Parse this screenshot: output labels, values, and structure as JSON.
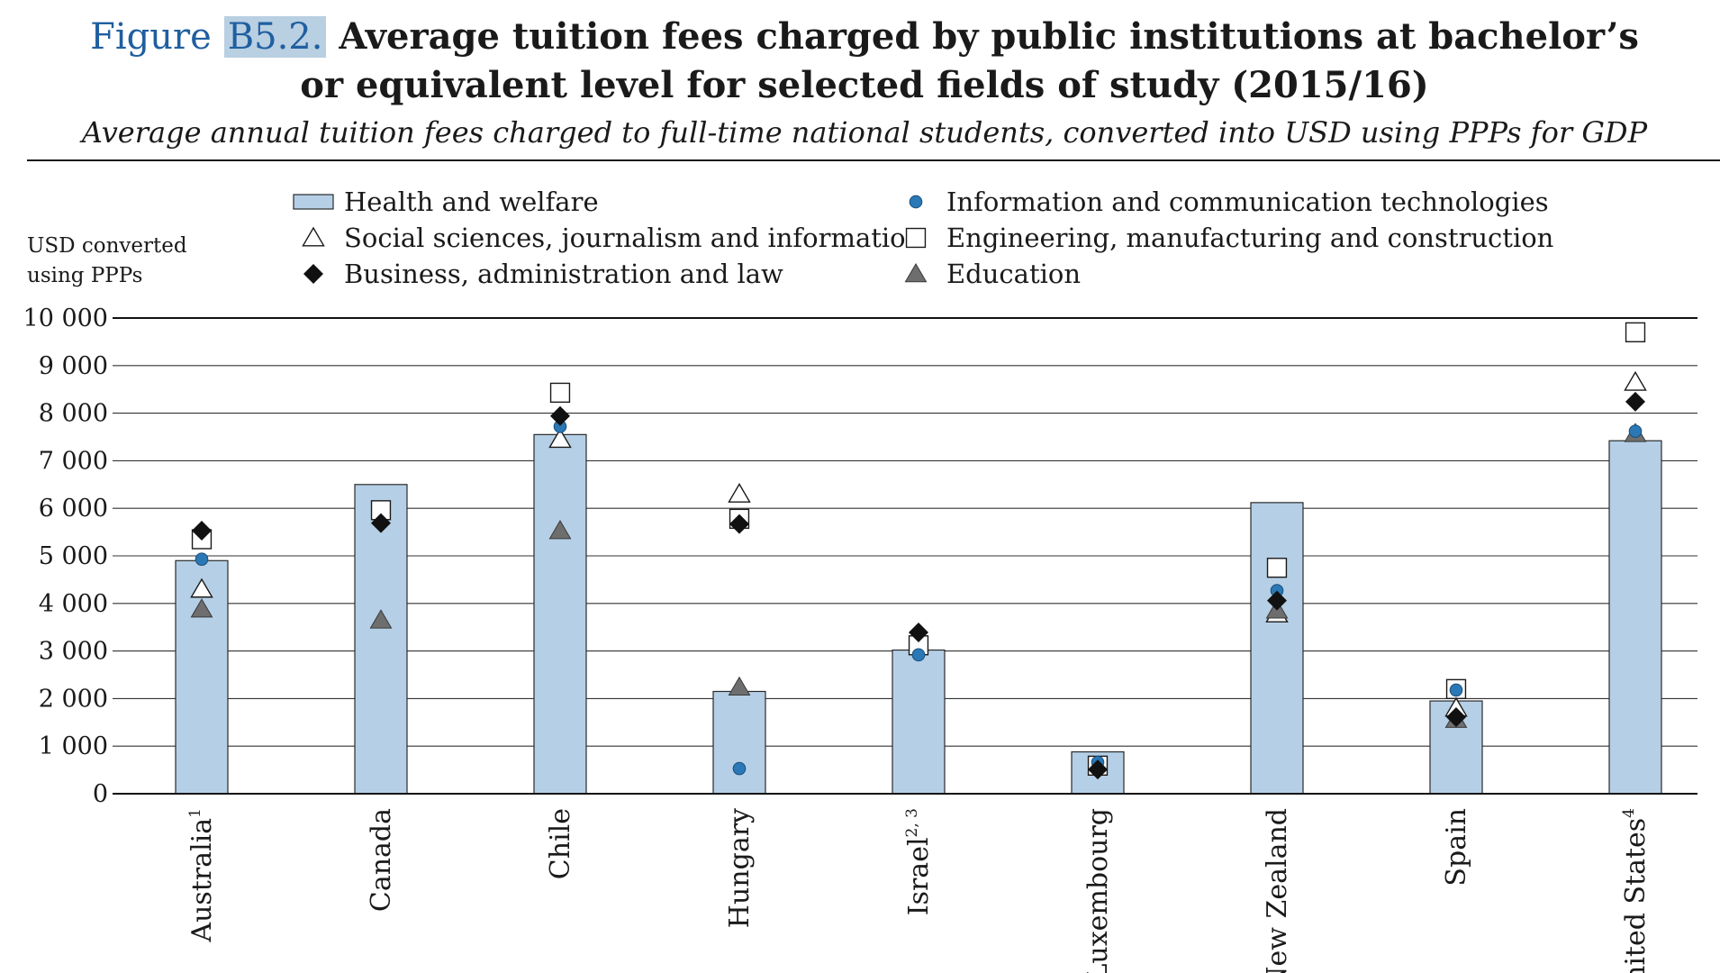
{
  "header": {
    "figure_label": "Figure",
    "figure_number": "B5.2.",
    "title_line1": "Average tuition fees charged by public institutions at bachelor’s",
    "title_line2": "or equivalent level for selected fields of study (2015/16)",
    "subtitle": "Average annual tuition fees charged to full-time national students, converted into USD using PPPs for GDP"
  },
  "colors": {
    "bar_fill": "#b5cfe6",
    "bar_stroke": "#2a2a2a",
    "ict_dot": "#2a78b5",
    "education_triangle": "#6e6e6e",
    "business_diamond": "#111111",
    "grid": "#333333"
  },
  "chart_data": {
    "type": "bar",
    "ylabel_line1": "USD converted",
    "ylabel_line2": "using PPPs",
    "ylim": [
      0,
      10000
    ],
    "yticks": [
      0,
      1000,
      2000,
      3000,
      4000,
      5000,
      6000,
      7000,
      8000,
      9000,
      10000
    ],
    "ytick_labels": [
      "0",
      "1 000",
      "2 000",
      "3 000",
      "4 000",
      "5 000",
      "6 000",
      "7 000",
      "8 000",
      "9 000",
      "10 000"
    ],
    "grid": true,
    "categories": [
      {
        "name": "Australia",
        "note": "1"
      },
      {
        "name": "Canada",
        "note": ""
      },
      {
        "name": "Chile",
        "note": ""
      },
      {
        "name": "Hungary",
        "note": ""
      },
      {
        "name": "Israel",
        "note": "2, 3"
      },
      {
        "name": "Luxembourg",
        "note": ""
      },
      {
        "name": "New Zealand",
        "note": ""
      },
      {
        "name": "Spain",
        "note": ""
      },
      {
        "name": "United States",
        "note": "4"
      }
    ],
    "legend_placement": "top",
    "series": [
      {
        "name": "Health and welfare",
        "marker": "bar",
        "values": [
          4900,
          6500,
          7550,
          2150,
          3020,
          880,
          6120,
          1950,
          7420
        ]
      },
      {
        "name": "Information and communication technologies",
        "marker": "circle",
        "values": [
          4930,
          null,
          7720,
          530,
          2920,
          660,
          4270,
          2180,
          7620
        ]
      },
      {
        "name": "Social sciences, journalism and information",
        "marker": "triangle-open",
        "values": [
          4300,
          null,
          7450,
          6300,
          null,
          null,
          3780,
          1800,
          8650
        ]
      },
      {
        "name": "Engineering, manufacturing and construction",
        "marker": "square-open",
        "values": [
          5350,
          5960,
          8430,
          5780,
          3120,
          590,
          4750,
          2200,
          9700
        ]
      },
      {
        "name": "Business, administration and law",
        "marker": "diamond",
        "values": [
          5530,
          5690,
          7940,
          5670,
          3390,
          510,
          4060,
          1610,
          8240
        ]
      },
      {
        "name": "Education",
        "marker": "triangle-filled",
        "values": [
          3880,
          3650,
          5530,
          2240,
          null,
          null,
          3860,
          1560,
          7570
        ]
      }
    ]
  }
}
